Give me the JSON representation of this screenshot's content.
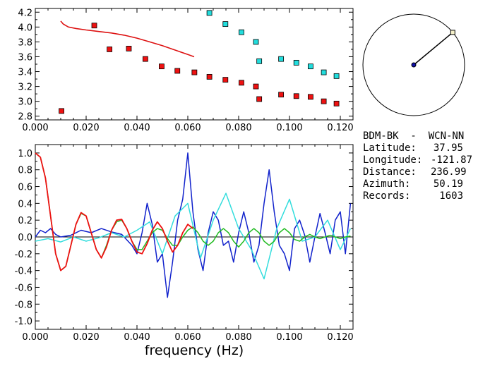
{
  "chart_data": [
    {
      "type": "scatter",
      "title": "",
      "xlabel": "",
      "ylabel": "",
      "xlim": [
        0.0,
        0.125
      ],
      "ylim": [
        2.75,
        4.25
      ],
      "x_ticks": [
        "0.000",
        "0.020",
        "0.040",
        "0.060",
        "0.080",
        "0.100",
        "0.120"
      ],
      "y_ticks": [
        "2.8",
        "3.0",
        "3.2",
        "3.4",
        "3.6",
        "3.8",
        "4.0",
        "4.2"
      ],
      "series": [
        {
          "color": "#ee1111",
          "marker": "square",
          "x": [
            0.0103,
            0.0232,
            0.0292,
            0.0368,
            0.0433,
            0.0497,
            0.0559,
            0.0626,
            0.0685,
            0.0748,
            0.0811,
            0.0868,
            0.0881,
            0.0967,
            0.1027,
            0.1083,
            0.1135,
            0.1185
          ],
          "y": [
            2.87,
            4.02,
            3.7,
            3.71,
            3.57,
            3.47,
            3.41,
            3.39,
            3.33,
            3.29,
            3.25,
            3.2,
            3.03,
            3.09,
            3.07,
            3.06,
            3.0,
            2.97
          ]
        },
        {
          "color": "#22dddd",
          "marker": "square",
          "x": [
            0.0685,
            0.0748,
            0.0811,
            0.0868,
            0.0881,
            0.0967,
            0.1027,
            0.1083,
            0.1135,
            0.1185
          ],
          "y": [
            4.19,
            4.04,
            3.93,
            3.8,
            3.54,
            3.57,
            3.52,
            3.47,
            3.39,
            3.34
          ]
        },
        {
          "color": "#dd1111",
          "type": "line",
          "x": [
            0.01,
            0.011,
            0.013,
            0.016,
            0.02,
            0.025,
            0.03,
            0.035,
            0.04,
            0.045,
            0.05,
            0.055,
            0.06,
            0.0625
          ],
          "y": [
            4.08,
            4.04,
            4.0,
            3.98,
            3.96,
            3.94,
            3.92,
            3.89,
            3.85,
            3.8,
            3.75,
            3.69,
            3.63,
            3.6
          ]
        }
      ]
    },
    {
      "type": "line",
      "title": "",
      "xlabel": "frequency (Hz)",
      "ylabel": "",
      "xlim": [
        0.0,
        0.125
      ],
      "ylim": [
        -1.1,
        1.1
      ],
      "x_ticks": [
        "0.000",
        "0.020",
        "0.040",
        "0.060",
        "0.080",
        "0.100",
        "0.120"
      ],
      "y_ticks": [
        "1.0",
        "0.8",
        "0.6",
        "0.4",
        "0.2",
        "0.0",
        "-0.2",
        "-0.4",
        "-0.6",
        "-0.8",
        "-1.0"
      ],
      "series": [
        {
          "color": "#1122cc",
          "x": [
            0.0,
            0.002,
            0.004,
            0.006,
            0.008,
            0.01,
            0.014,
            0.018,
            0.022,
            0.026,
            0.03,
            0.034,
            0.038,
            0.04,
            0.042,
            0.044,
            0.046,
            0.048,
            0.05,
            0.052,
            0.054,
            0.056,
            0.058,
            0.06,
            0.062,
            0.064,
            0.066,
            0.068,
            0.07,
            0.072,
            0.074,
            0.076,
            0.078,
            0.08,
            0.082,
            0.084,
            0.086,
            0.088,
            0.09,
            0.092,
            0.094,
            0.096,
            0.098,
            0.1,
            0.102,
            0.104,
            0.106,
            0.108,
            0.11,
            0.112,
            0.114,
            0.116,
            0.118,
            0.12,
            0.122,
            0.124
          ],
          "y": [
            0.0,
            0.08,
            0.05,
            0.1,
            0.03,
            0.0,
            0.02,
            0.08,
            0.05,
            0.1,
            0.06,
            0.03,
            -0.1,
            -0.2,
            0.05,
            0.4,
            0.15,
            -0.3,
            -0.2,
            -0.72,
            -0.3,
            0.2,
            0.45,
            1.0,
            0.3,
            -0.15,
            -0.4,
            0.05,
            0.3,
            0.2,
            -0.1,
            -0.05,
            -0.3,
            0.05,
            0.3,
            0.05,
            -0.3,
            -0.1,
            0.4,
            0.8,
            0.3,
            -0.1,
            -0.2,
            -0.4,
            0.1,
            0.2,
            0.02,
            -0.3,
            0.0,
            0.28,
            0.05,
            -0.2,
            0.2,
            0.3,
            -0.2,
            0.4
          ]
        },
        {
          "color": "#33dddd",
          "x": [
            0.0,
            0.005,
            0.01,
            0.015,
            0.02,
            0.025,
            0.03,
            0.035,
            0.04,
            0.045,
            0.05,
            0.055,
            0.06,
            0.065,
            0.07,
            0.075,
            0.08,
            0.085,
            0.09,
            0.095,
            0.1,
            0.105,
            0.11,
            0.115,
            0.12,
            0.124
          ],
          "y": [
            -0.05,
            -0.02,
            -0.06,
            0.0,
            -0.05,
            -0.01,
            0.05,
            0.0,
            0.08,
            0.18,
            -0.2,
            0.25,
            0.4,
            -0.25,
            0.2,
            0.52,
            0.1,
            -0.15,
            -0.5,
            0.1,
            0.45,
            -0.05,
            0.0,
            0.2,
            -0.15,
            0.1
          ]
        },
        {
          "color": "#22bb22",
          "x": [
            0.0,
            0.002,
            0.004,
            0.006,
            0.008,
            0.01,
            0.012,
            0.014,
            0.016,
            0.018,
            0.02,
            0.022,
            0.024,
            0.026,
            0.028,
            0.03,
            0.032,
            0.034,
            0.036,
            0.038,
            0.04,
            0.042,
            0.044,
            0.046,
            0.048,
            0.05,
            0.052,
            0.054,
            0.056,
            0.058,
            0.06,
            0.062,
            0.064,
            0.066,
            0.068,
            0.07,
            0.072,
            0.074,
            0.076,
            0.078,
            0.08,
            0.082,
            0.084,
            0.086,
            0.088,
            0.09,
            0.092,
            0.094,
            0.096,
            0.098,
            0.1,
            0.102,
            0.104,
            0.106,
            0.108,
            0.11,
            0.112,
            0.114,
            0.116,
            0.118,
            0.12,
            0.122,
            0.124
          ],
          "y": [
            1.0,
            0.95,
            0.7,
            0.25,
            -0.2,
            -0.4,
            -0.35,
            -0.1,
            0.15,
            0.28,
            0.25,
            0.05,
            -0.15,
            -0.25,
            -0.1,
            0.08,
            0.18,
            0.2,
            0.1,
            -0.05,
            -0.15,
            -0.15,
            -0.05,
            0.05,
            0.1,
            0.08,
            -0.02,
            -0.1,
            -0.1,
            0.0,
            0.08,
            0.12,
            0.05,
            -0.05,
            -0.1,
            -0.05,
            0.05,
            0.1,
            0.05,
            -0.05,
            -0.12,
            -0.05,
            0.05,
            0.1,
            0.05,
            -0.05,
            -0.1,
            -0.05,
            0.05,
            0.1,
            0.05,
            -0.03,
            -0.05,
            0.0,
            0.03,
            0.0,
            -0.02,
            0.0,
            0.02,
            0.0,
            -0.02,
            0.0,
            0.01
          ]
        },
        {
          "color": "#ee1111",
          "x": [
            0.0,
            0.002,
            0.004,
            0.006,
            0.008,
            0.01,
            0.012,
            0.014,
            0.016,
            0.018,
            0.02,
            0.022,
            0.024,
            0.026,
            0.028,
            0.03,
            0.032,
            0.034,
            0.036,
            0.038,
            0.04,
            0.042,
            0.044,
            0.046,
            0.048,
            0.05,
            0.052,
            0.054,
            0.056,
            0.058,
            0.06,
            0.062
          ],
          "y": [
            1.0,
            0.95,
            0.7,
            0.25,
            -0.2,
            -0.4,
            -0.35,
            -0.1,
            0.15,
            0.29,
            0.25,
            0.05,
            -0.15,
            -0.25,
            -0.12,
            0.08,
            0.2,
            0.21,
            0.1,
            -0.05,
            -0.18,
            -0.2,
            -0.08,
            0.08,
            0.18,
            0.1,
            -0.05,
            -0.18,
            -0.1,
            0.05,
            0.15,
            0.1
          ]
        }
      ]
    }
  ],
  "azimuth_dial": {
    "azimuth_deg": 50.19,
    "circle_color": "#000000",
    "marker_color": "#1111aa"
  },
  "info": {
    "title": "BDM-BK  -  WCN-NN",
    "rows": [
      {
        "label": "Latitude:",
        "value": "37.95"
      },
      {
        "label": "Longitude:",
        "value": "-121.87"
      },
      {
        "label": "Distance:",
        "value": "236.99"
      },
      {
        "label": "Azimuth:",
        "value": "50.19"
      },
      {
        "label": "Records:",
        "value": "1603"
      }
    ]
  }
}
